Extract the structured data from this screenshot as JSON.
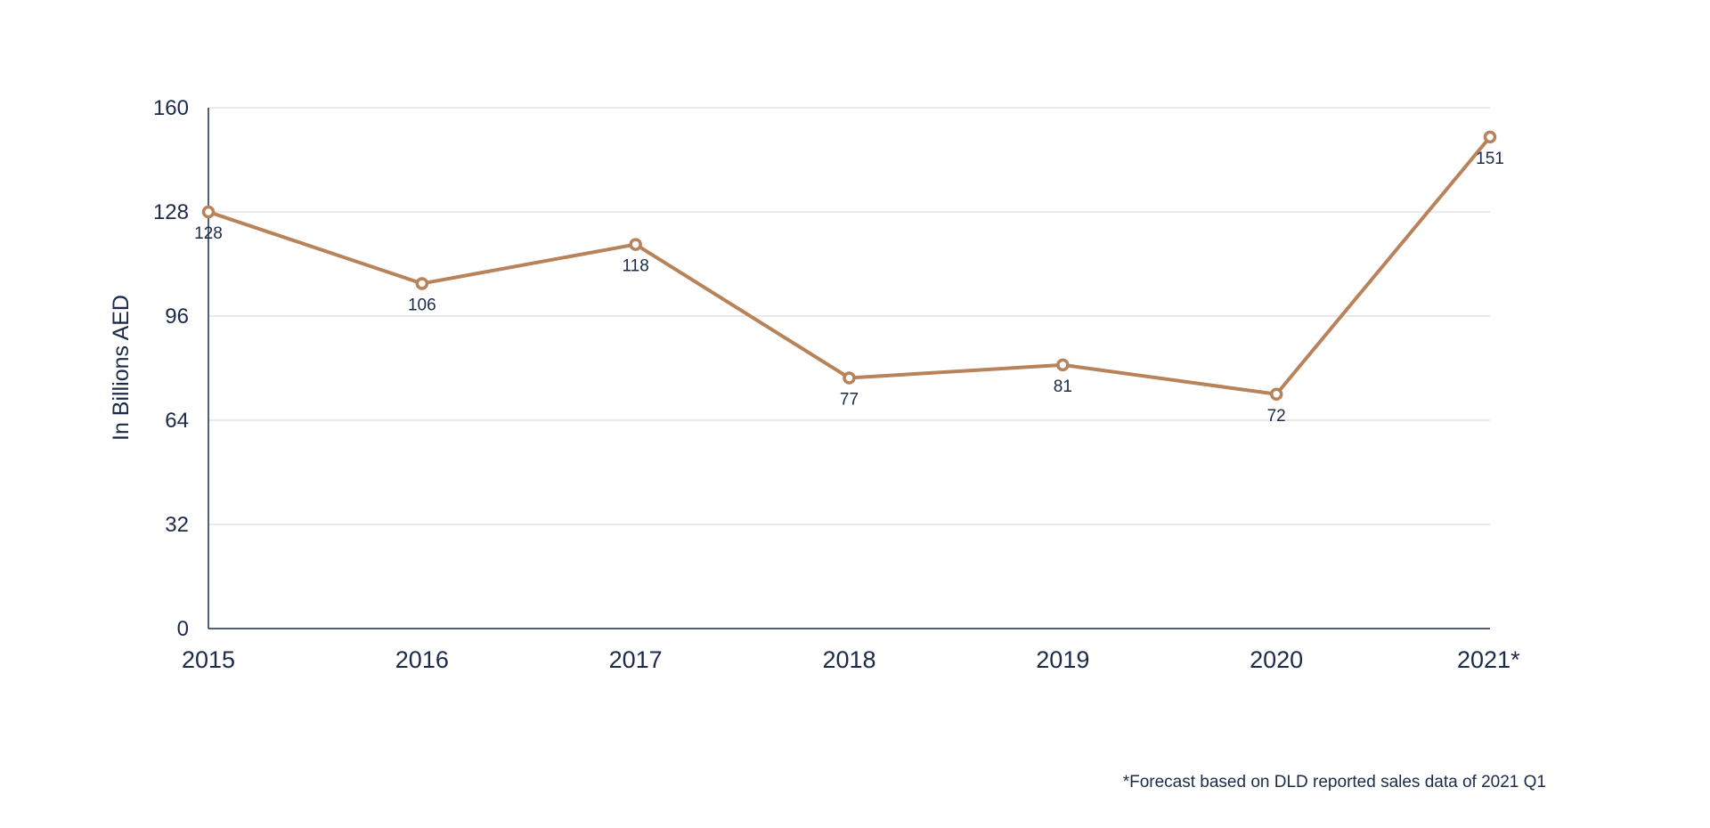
{
  "chart_data": {
    "type": "line",
    "categories": [
      "2015",
      "2016",
      "2017",
      "2018",
      "2019",
      "2020",
      "2021*"
    ],
    "series": [
      {
        "values": [
          128,
          106,
          118,
          77,
          81,
          72,
          151
        ],
        "color": "#b8825a"
      }
    ],
    "data_labels": [
      "128",
      "106",
      "118",
      "77",
      "81",
      "72",
      "151"
    ],
    "ylabel": "In Billions AED",
    "xlabel": "",
    "ylim": [
      0,
      160
    ],
    "yticks": [
      0,
      32,
      64,
      96,
      128,
      160
    ],
    "ytick_labels": [
      "0",
      "32",
      "64",
      "96",
      "128",
      "160"
    ],
    "grid": true,
    "marker": "hollow-circle",
    "axis_color": "#1c2a4a",
    "grid_color": "#d6d6d6"
  },
  "footnote": "*Forecast based on DLD reported sales data of 2021 Q1"
}
